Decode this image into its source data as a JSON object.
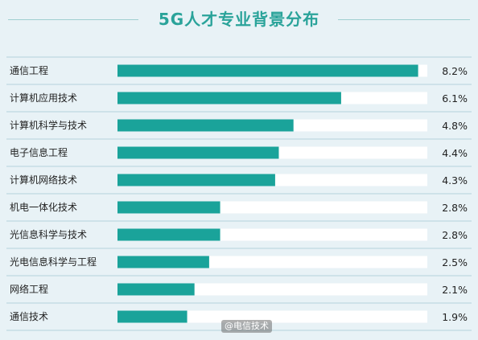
{
  "chart_data": {
    "type": "bar",
    "orientation": "horizontal",
    "title": "5G人才专业背景分布",
    "categories": [
      "通信工程",
      "计算机应用技术",
      "计算机科学与技术",
      "电子信息工程",
      "计算机网络技术",
      "机电一体化技术",
      "光信息科学与技术",
      "光电信息科学与工程",
      "网络工程",
      "通信技术"
    ],
    "values": [
      8.2,
      6.1,
      4.8,
      4.4,
      4.3,
      2.8,
      2.8,
      2.5,
      2.1,
      1.9
    ],
    "value_labels": [
      "8.2%",
      "6.1%",
      "4.8%",
      "4.4%",
      "4.3%",
      "2.8%",
      "2.8%",
      "2.5%",
      "2.1%",
      "1.9%"
    ],
    "unit": "%",
    "xlim": [
      0,
      8.45
    ],
    "grid": false,
    "colors": {
      "bar": "#1aa39a",
      "track": "#ffffff",
      "background": "#e8f2f6",
      "title": "#2aa39a",
      "separator": "#b4d2dc"
    }
  },
  "watermark": "@电信技术"
}
